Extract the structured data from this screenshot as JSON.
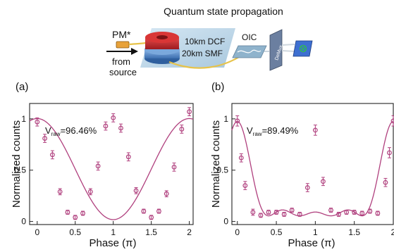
{
  "title": "Quantum state propagation",
  "schematic": {
    "pm_label": "PM*",
    "source_label_line1": "from",
    "source_label_line2": "source",
    "dcf_label": "10km DCF",
    "smf_label": "20km SMF",
    "oic_label": "OIC",
    "demux_label": "DeMux",
    "colors": {
      "fiber_spool_red": "#c8282c",
      "fiber_spool_blue": "#5a8ed0",
      "panel_bg": "#bcd6e8",
      "fiber": "#e7c34a",
      "detector": "#3d6fd1",
      "detector_mark": "#2fbf4a"
    }
  },
  "chart_data": [
    {
      "panel_label": "(a)",
      "type": "line",
      "annotation_v": "V",
      "annotation_sub": "raw",
      "annotation_value": "=96.46%",
      "xlabel": "Phase (π)",
      "ylabel": "Normalized counts",
      "xlim": [
        -0.1,
        2.05
      ],
      "ylim": [
        -0.03,
        1.15
      ],
      "xticks": [
        0,
        0.5,
        1,
        1.5,
        2
      ],
      "xtick_labels": [
        "0",
        "0.5",
        "1",
        "1.5",
        "2"
      ],
      "yticks": [
        0,
        0.5,
        1
      ],
      "ytick_labels": [
        "0",
        "0.5",
        "1"
      ],
      "color": "#b0407e",
      "points": [
        {
          "x": 0.0,
          "y": 0.97,
          "err": 0.04
        },
        {
          "x": 0.1,
          "y": 0.81,
          "err": 0.04
        },
        {
          "x": 0.2,
          "y": 0.65,
          "err": 0.04
        },
        {
          "x": 0.3,
          "y": 0.29,
          "err": 0.03
        },
        {
          "x": 0.4,
          "y": 0.09,
          "err": 0.02
        },
        {
          "x": 0.5,
          "y": 0.04,
          "err": 0.02
        },
        {
          "x": 0.6,
          "y": 0.08,
          "err": 0.02
        },
        {
          "x": 0.7,
          "y": 0.29,
          "err": 0.03
        },
        {
          "x": 0.8,
          "y": 0.54,
          "err": 0.04
        },
        {
          "x": 0.9,
          "y": 0.93,
          "err": 0.04
        },
        {
          "x": 1.0,
          "y": 1.01,
          "err": 0.04
        },
        {
          "x": 1.1,
          "y": 0.91,
          "err": 0.04
        },
        {
          "x": 1.2,
          "y": 0.63,
          "err": 0.04
        },
        {
          "x": 1.3,
          "y": 0.3,
          "err": 0.03
        },
        {
          "x": 1.4,
          "y": 0.1,
          "err": 0.02
        },
        {
          "x": 1.5,
          "y": 0.04,
          "err": 0.02
        },
        {
          "x": 1.6,
          "y": 0.1,
          "err": 0.02
        },
        {
          "x": 1.7,
          "y": 0.27,
          "err": 0.03
        },
        {
          "x": 1.8,
          "y": 0.53,
          "err": 0.04
        },
        {
          "x": 1.9,
          "y": 0.9,
          "err": 0.04
        },
        {
          "x": 2.0,
          "y": 1.07,
          "err": 0.04
        }
      ],
      "fit": {
        "model": "cos2",
        "amplitude": 0.985,
        "offset": 0.018,
        "harmonic": 1
      }
    },
    {
      "panel_label": "(b)",
      "type": "line",
      "annotation_v": "V",
      "annotation_sub": "raw",
      "annotation_value": "=89.49%",
      "xlabel": "Phase (π)",
      "ylabel": "Normalized counts",
      "xlim": [
        -0.07,
        2.0
      ],
      "ylim": [
        -0.03,
        1.15
      ],
      "xticks": [
        0,
        0.5,
        1,
        1.5,
        2
      ],
      "xtick_labels": [
        "0",
        "0.5",
        "1",
        "1.5",
        "2"
      ],
      "yticks": [
        0,
        0.5,
        1
      ],
      "ytick_labels": [
        "0",
        "0.5",
        "1"
      ],
      "color": "#b0407e",
      "points": [
        {
          "x": 0.0,
          "y": 0.98,
          "err": 0.05
        },
        {
          "x": 0.05,
          "y": 0.62,
          "err": 0.04
        },
        {
          "x": 0.1,
          "y": 0.35,
          "err": 0.04
        },
        {
          "x": 0.2,
          "y": 0.09,
          "err": 0.03
        },
        {
          "x": 0.3,
          "y": 0.06,
          "err": 0.02
        },
        {
          "x": 0.4,
          "y": 0.09,
          "err": 0.02
        },
        {
          "x": 0.5,
          "y": 0.09,
          "err": 0.02
        },
        {
          "x": 0.6,
          "y": 0.07,
          "err": 0.02
        },
        {
          "x": 0.7,
          "y": 0.11,
          "err": 0.02
        },
        {
          "x": 0.8,
          "y": 0.07,
          "err": 0.02
        },
        {
          "x": 0.9,
          "y": 0.33,
          "err": 0.04
        },
        {
          "x": 1.0,
          "y": 0.89,
          "err": 0.05
        },
        {
          "x": 1.1,
          "y": 0.39,
          "err": 0.04
        },
        {
          "x": 1.2,
          "y": 0.11,
          "err": 0.02
        },
        {
          "x": 1.3,
          "y": 0.07,
          "err": 0.02
        },
        {
          "x": 1.4,
          "y": 0.09,
          "err": 0.02
        },
        {
          "x": 1.5,
          "y": 0.09,
          "err": 0.02
        },
        {
          "x": 1.6,
          "y": 0.08,
          "err": 0.02
        },
        {
          "x": 1.7,
          "y": 0.1,
          "err": 0.02
        },
        {
          "x": 1.8,
          "y": 0.08,
          "err": 0.02
        },
        {
          "x": 1.9,
          "y": 0.38,
          "err": 0.04
        },
        {
          "x": 1.95,
          "y": 0.67,
          "err": 0.05
        },
        {
          "x": 2.0,
          "y": 0.98,
          "err": 0.05
        }
      ],
      "fit": {
        "model": "dirichlet",
        "amplitude": 0.92,
        "offset": 0.055,
        "terms": 5
      }
    }
  ]
}
